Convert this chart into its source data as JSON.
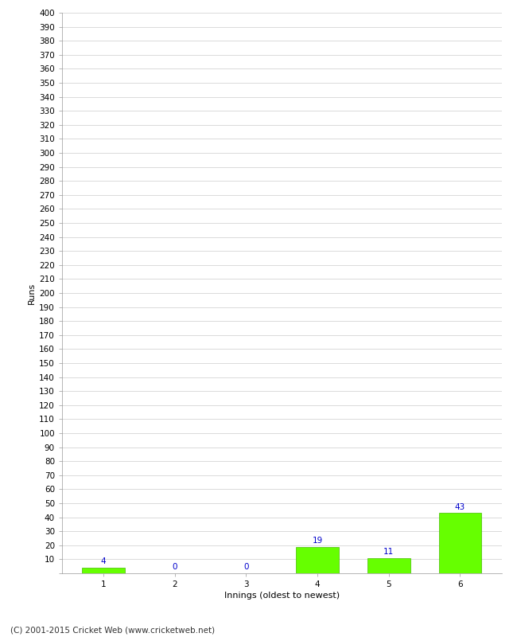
{
  "categories": [
    "1",
    "2",
    "3",
    "4",
    "5",
    "6"
  ],
  "values": [
    4,
    0,
    0,
    19,
    11,
    43
  ],
  "bar_color": "#66ff00",
  "bar_edge_color": "#44bb00",
  "ylabel": "Runs",
  "xlabel": "Innings (oldest to newest)",
  "ylim": [
    0,
    400
  ],
  "ytick_step": 10,
  "label_color": "#0000cc",
  "background_color": "#ffffff",
  "grid_color": "#cccccc",
  "footer_text": "(C) 2001-2015 Cricket Web (www.cricketweb.net)",
  "label_fontsize": 7.5,
  "axis_tick_fontsize": 7.5,
  "axis_label_fontsize": 8,
  "footer_fontsize": 7.5
}
